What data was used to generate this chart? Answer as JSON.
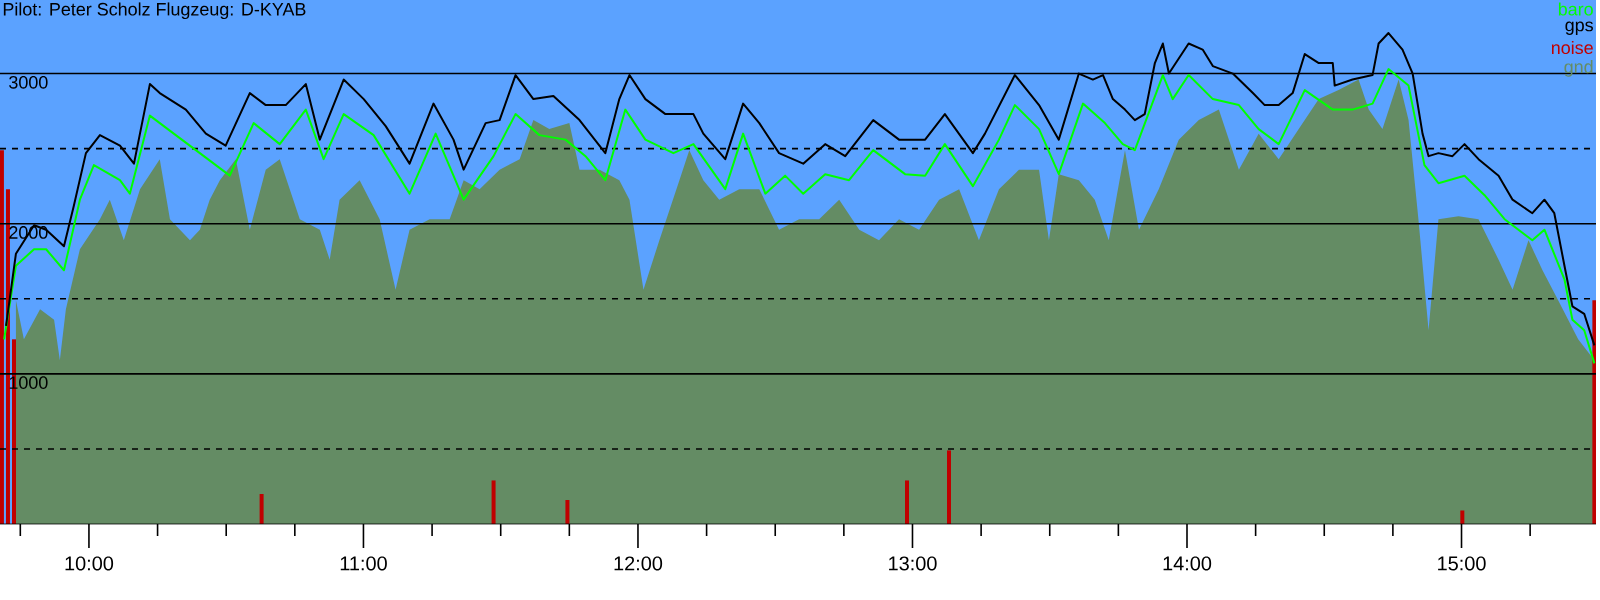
{
  "chart_data": {
    "type": "line",
    "title": "Pilot: Peter Scholz Flugzeug: D-KYAB",
    "xlim": [
      9.676,
      15.49
    ],
    "ylim": [
      0,
      3490
    ],
    "xticks": [
      {
        "value": 9.75,
        "label": null
      },
      {
        "value": 10,
        "label": "10:00"
      },
      {
        "value": 10.25,
        "label": null
      },
      {
        "value": 10.5,
        "label": null
      },
      {
        "value": 10.75,
        "label": null
      },
      {
        "value": 11,
        "label": "11:00"
      },
      {
        "value": 11.25,
        "label": null
      },
      {
        "value": 11.5,
        "label": null
      },
      {
        "value": 11.75,
        "label": null
      },
      {
        "value": 12,
        "label": "12:00"
      },
      {
        "value": 12.25,
        "label": null
      },
      {
        "value": 12.5,
        "label": null
      },
      {
        "value": 12.75,
        "label": null
      },
      {
        "value": 13,
        "label": "13:00"
      },
      {
        "value": 13.25,
        "label": null
      },
      {
        "value": 13.5,
        "label": null
      },
      {
        "value": 13.75,
        "label": null
      },
      {
        "value": 14,
        "label": "14:00"
      },
      {
        "value": 14.25,
        "label": null
      },
      {
        "value": 14.5,
        "label": null
      },
      {
        "value": 14.75,
        "label": null
      },
      {
        "value": 15,
        "label": "15:00"
      },
      {
        "value": 15.25,
        "label": null
      }
    ],
    "yticks": [
      {
        "value": 500,
        "label": null
      },
      1000,
      {
        "value": 1500,
        "label": null
      },
      2000,
      {
        "value": 2500,
        "label": null
      },
      3000
    ],
    "bands": [
      {
        "axis": "y",
        "from": 0,
        "to": 3490,
        "color": "#5ba2ff"
      }
    ],
    "grid": true,
    "legend": "top right",
    "marker": "none",
    "line_style": "solid",
    "series": [
      {
        "name": "baro",
        "color": "#00ff00",
        "x": [
          9.691,
          9.734,
          9.8,
          9.844,
          9.909,
          9.967,
          10.018,
          10.113,
          10.149,
          10.222,
          10.309,
          10.404,
          10.513,
          10.6,
          10.695,
          10.79,
          10.855,
          10.928,
          11.037,
          11.168,
          11.263,
          11.365,
          11.474,
          11.554,
          11.641,
          11.736,
          11.809,
          11.881,
          11.954,
          12.027,
          12.129,
          12.202,
          12.318,
          12.383,
          12.464,
          12.536,
          12.602,
          12.682,
          12.769,
          12.857,
          12.973,
          13.046,
          13.118,
          13.22,
          13.315,
          13.373,
          13.461,
          13.533,
          13.621,
          13.701,
          13.766,
          13.81,
          13.912,
          13.948,
          14.006,
          14.094,
          14.189,
          14.261,
          14.334,
          14.429,
          14.531,
          14.603,
          14.676,
          14.734,
          14.807,
          14.865,
          14.916,
          15.011,
          15.084,
          15.157,
          15.258,
          15.302,
          15.375,
          15.404,
          15.447,
          15.484
        ],
        "values": [
          1230,
          1720,
          1830,
          1830,
          1690,
          2160,
          2390,
          2290,
          2200,
          2720,
          2600,
          2470,
          2320,
          2670,
          2530,
          2760,
          2430,
          2730,
          2590,
          2200,
          2600,
          2160,
          2450,
          2730,
          2590,
          2560,
          2450,
          2290,
          2760,
          2560,
          2470,
          2530,
          2230,
          2600,
          2200,
          2320,
          2200,
          2330,
          2290,
          2490,
          2330,
          2320,
          2530,
          2250,
          2560,
          2790,
          2630,
          2330,
          2800,
          2670,
          2530,
          2490,
          2990,
          2830,
          2990,
          2830,
          2790,
          2630,
          2530,
          2890,
          2760,
          2760,
          2800,
          3030,
          2920,
          2390,
          2270,
          2320,
          2190,
          2030,
          1890,
          1960,
          1630,
          1360,
          1290,
          1070
        ]
      },
      {
        "name": "gps",
        "color": "#000000",
        "x": [
          9.698,
          9.734,
          9.8,
          9.844,
          9.909,
          9.945,
          9.989,
          10.04,
          10.113,
          10.164,
          10.222,
          10.258,
          10.353,
          10.426,
          10.498,
          10.586,
          10.644,
          10.717,
          10.79,
          10.841,
          10.928,
          11.001,
          11.081,
          11.168,
          11.255,
          11.328,
          11.365,
          11.445,
          11.496,
          11.554,
          11.619,
          11.692,
          11.787,
          11.881,
          11.932,
          11.969,
          12.027,
          12.1,
          12.202,
          12.238,
          12.318,
          12.383,
          12.442,
          12.514,
          12.602,
          12.682,
          12.755,
          12.857,
          12.951,
          13.046,
          13.118,
          13.22,
          13.264,
          13.373,
          13.461,
          13.533,
          13.606,
          13.657,
          13.694,
          13.73,
          13.774,
          13.81,
          13.846,
          13.883,
          13.912,
          13.934,
          14.006,
          14.057,
          14.094,
          14.167,
          14.24,
          14.283,
          14.334,
          14.385,
          14.429,
          14.48,
          14.531,
          14.538,
          14.603,
          14.676,
          14.698,
          14.734,
          14.785,
          14.822,
          14.858,
          14.88,
          14.916,
          14.967,
          15.011,
          15.062,
          15.135,
          15.186,
          15.258,
          15.302,
          15.338,
          15.375,
          15.404,
          15.447,
          15.484
        ],
        "values": [
          1320,
          1800,
          1990,
          1960,
          1850,
          2120,
          2470,
          2590,
          2520,
          2400,
          2930,
          2870,
          2760,
          2600,
          2520,
          2870,
          2790,
          2790,
          2930,
          2560,
          2960,
          2830,
          2650,
          2400,
          2800,
          2560,
          2360,
          2670,
          2690,
          2990,
          2830,
          2850,
          2690,
          2470,
          2830,
          2990,
          2830,
          2730,
          2730,
          2600,
          2430,
          2800,
          2670,
          2470,
          2400,
          2530,
          2450,
          2690,
          2560,
          2560,
          2730,
          2470,
          2600,
          2990,
          2790,
          2560,
          3000,
          2960,
          2990,
          2830,
          2760,
          2690,
          2730,
          3070,
          3200,
          3000,
          3200,
          3160,
          3050,
          3000,
          2870,
          2790,
          2790,
          2870,
          3130,
          3070,
          3070,
          2920,
          2960,
          2990,
          3200,
          3270,
          3160,
          3000,
          2600,
          2450,
          2470,
          2450,
          2530,
          2430,
          2320,
          2160,
          2070,
          2160,
          2070,
          1720,
          1450,
          1400,
          1190
        ]
      },
      {
        "name": "noise",
        "type": "bar",
        "color": "#c00000",
        "x": [
          9.683,
          9.705,
          9.727,
          10.629,
          11.474,
          11.743,
          12.98,
          13.133,
          15.003,
          15.484
        ],
        "values": [
          2490,
          2230,
          1230,
          200,
          290,
          160,
          290,
          490,
          90,
          1490
        ]
      },
      {
        "name": "gnd",
        "type": "area",
        "color": "#648c64",
        "x": [
          9.734,
          9.763,
          9.822,
          9.873,
          9.894,
          9.916,
          9.967,
          10.04,
          10.076,
          10.127,
          10.186,
          10.258,
          10.295,
          10.368,
          10.404,
          10.44,
          10.477,
          10.535,
          10.586,
          10.644,
          10.695,
          10.768,
          10.841,
          10.877,
          10.913,
          10.986,
          11.059,
          11.117,
          11.168,
          11.241,
          11.314,
          11.365,
          11.423,
          11.496,
          11.569,
          11.619,
          11.677,
          11.75,
          11.787,
          11.86,
          11.932,
          11.969,
          12.02,
          12.078,
          12.151,
          12.187,
          12.238,
          12.296,
          12.369,
          12.442,
          12.514,
          12.587,
          12.66,
          12.733,
          12.806,
          12.878,
          12.951,
          13.024,
          13.097,
          13.17,
          13.242,
          13.315,
          13.388,
          13.461,
          13.497,
          13.533,
          13.606,
          13.664,
          13.715,
          13.774,
          13.825,
          13.897,
          13.97,
          14.043,
          14.116,
          14.189,
          14.261,
          14.334,
          14.407,
          14.48,
          14.552,
          14.625,
          14.662,
          14.712,
          14.771,
          14.807,
          14.843,
          14.88,
          14.916,
          14.989,
          15.062,
          15.135,
          15.186,
          15.244,
          15.295,
          15.352,
          15.425,
          15.484
        ],
        "values": [
          1490,
          1230,
          1430,
          1360,
          1090,
          1430,
          1830,
          2030,
          2160,
          1890,
          2230,
          2430,
          2030,
          1890,
          1960,
          2160,
          2290,
          2430,
          1960,
          2360,
          2430,
          2030,
          1960,
          1760,
          2160,
          2290,
          2030,
          1560,
          1960,
          2030,
          2030,
          2290,
          2230,
          2360,
          2430,
          2690,
          2630,
          2670,
          2360,
          2360,
          2290,
          2160,
          1560,
          1890,
          2290,
          2490,
          2290,
          2160,
          2230,
          2230,
          1960,
          2030,
          2030,
          2160,
          1960,
          1890,
          2030,
          1960,
          2160,
          2230,
          1890,
          2230,
          2360,
          2360,
          1890,
          2330,
          2290,
          2160,
          1890,
          2490,
          1960,
          2230,
          2560,
          2690,
          2760,
          2360,
          2600,
          2430,
          2630,
          2830,
          2890,
          2960,
          2760,
          2630,
          2960,
          2690,
          2030,
          1290,
          2030,
          2050,
          2030,
          1760,
          1560,
          1890,
          1690,
          1490,
          1230,
          1090
        ]
      }
    ]
  }
}
